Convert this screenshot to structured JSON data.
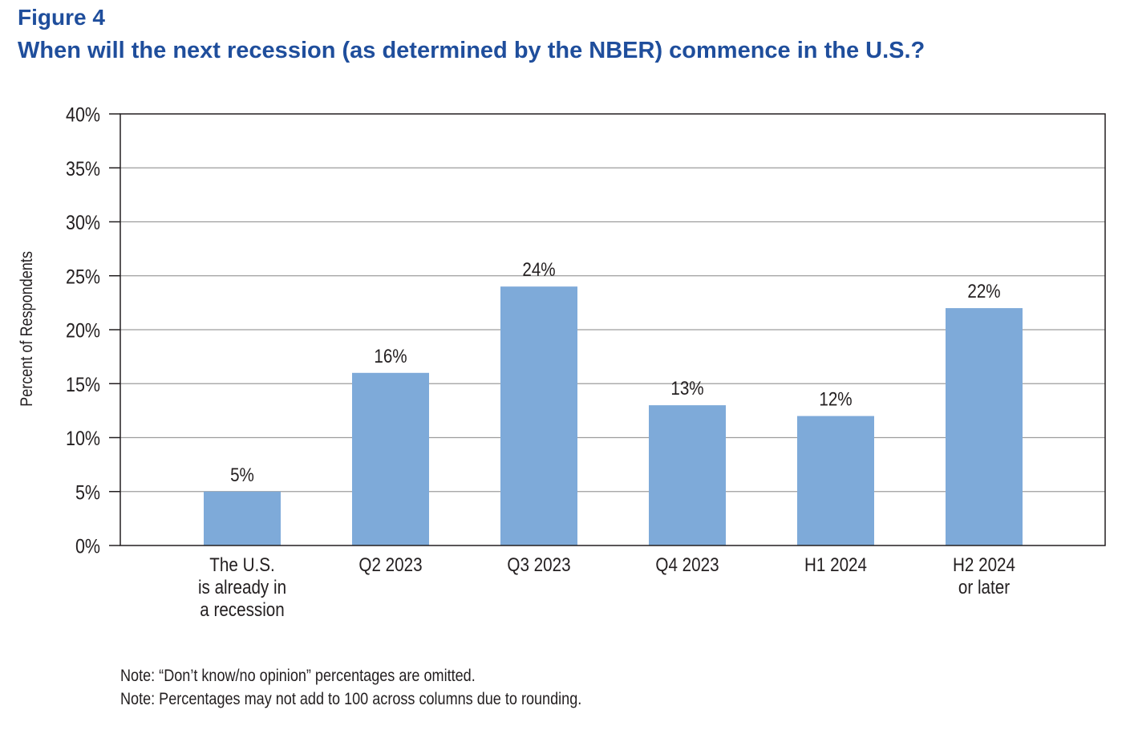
{
  "figure": {
    "label": "Figure 4",
    "title": "When will the next recession (as determined by the NBER) commence in the U.S.?"
  },
  "chart_data": {
    "type": "bar",
    "categories": [
      [
        "The U.S.",
        "is already in",
        "a recession"
      ],
      [
        "Q2 2023"
      ],
      [
        "Q3 2023"
      ],
      [
        "Q4 2023"
      ],
      [
        "H1 2024"
      ],
      [
        "H2 2024",
        "or later"
      ]
    ],
    "values": [
      5,
      16,
      24,
      13,
      12,
      22
    ],
    "data_labels": [
      "5%",
      "16%",
      "24%",
      "13%",
      "12%",
      "22%"
    ],
    "ylabel": "Percent of Respondents",
    "ylim": [
      0,
      40
    ],
    "yticks": [
      0,
      5,
      10,
      15,
      20,
      25,
      30,
      35,
      40
    ],
    "ytick_labels": [
      "0%",
      "5%",
      "10%",
      "15%",
      "20%",
      "25%",
      "30%",
      "35%",
      "40%"
    ],
    "grid": true,
    "bar_color": "#7eaad9"
  },
  "notes": [
    "Note: “Don’t know/no opinion” percentages are omitted.",
    "Note: Percentages may not add to 100 across columns due to rounding."
  ]
}
